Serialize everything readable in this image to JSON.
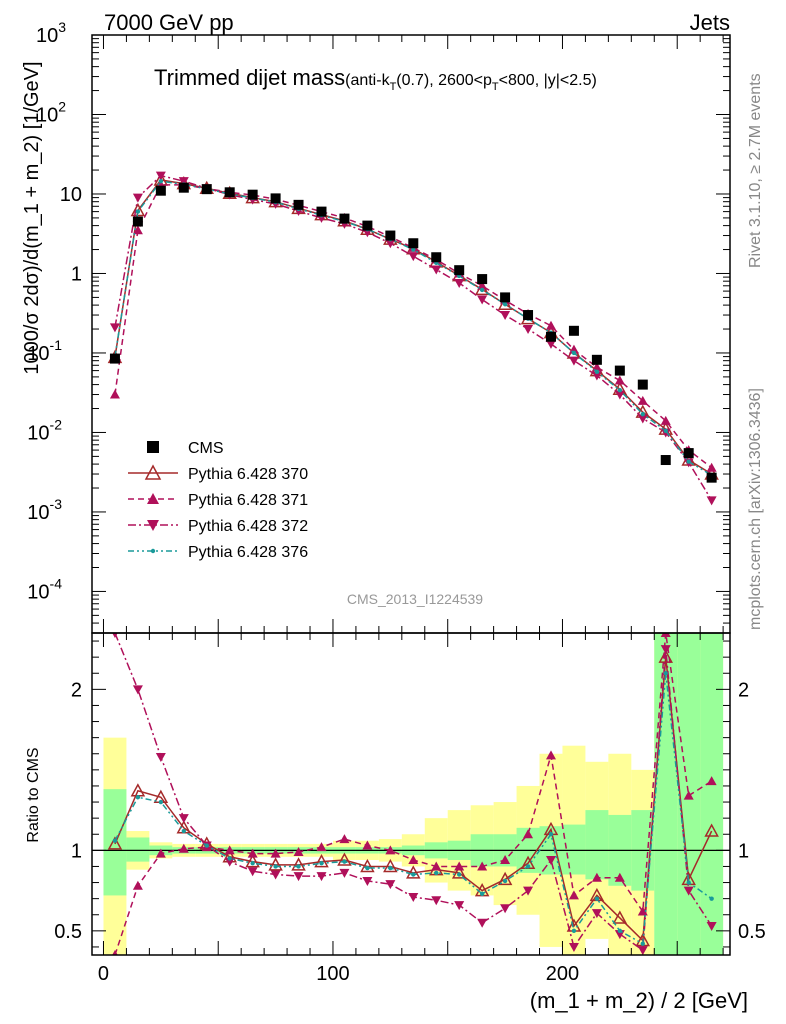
{
  "header": {
    "left": "7000 GeV pp",
    "right": "Jets"
  },
  "title": {
    "main": "Trimmed dijet mass",
    "sub_prefix": "(anti-k",
    "sub_kt_sub": "T",
    "sub_mid": "(0.7), 2600<p",
    "sub_pt_sub": "T",
    "sub_suffix": "<800, |y|<2.5)"
  },
  "side_labels": {
    "rivet": "Rivet 3.1.10, ≥ 2.7M events",
    "mcplots": "mcplots.cern.ch [arXiv:1306.3436]"
  },
  "analysis_id": "CMS_2013_I1224539",
  "axes": {
    "main_ylabel": "1000/σ 2dσ)/d(m_1 + m_2) [1/GeV]",
    "ratio_ylabel": "Ratio to CMS",
    "xlabel": "(m_1 + m_2) / 2 [GeV]",
    "x_ticks": [
      "0",
      "100",
      "200"
    ],
    "main_y_ticks": [
      "10",
      "10",
      "10",
      "10",
      "1",
      "10",
      "10^2",
      "10^3"
    ],
    "main_y_exponents": [
      "-4",
      "-3",
      "-2",
      "-1",
      "",
      "",
      "2",
      "3"
    ],
    "ratio_y_ticks": [
      "0.5",
      "1",
      "2"
    ]
  },
  "legend": {
    "entries": [
      {
        "label": "CMS",
        "color": "#000000",
        "marker": "square"
      },
      {
        "label": "Pythia 6.428 370",
        "color": "#a52a2a",
        "marker": "open-triangle-up"
      },
      {
        "label": "Pythia 6.428 371",
        "color": "#b0105a",
        "marker": "triangle-up"
      },
      {
        "label": "Pythia 6.428 372",
        "color": "#b0105a",
        "marker": "triangle-down"
      },
      {
        "label": "Pythia 6.428 376",
        "color": "#1a9a9a",
        "marker": "dot"
      }
    ]
  },
  "chart_data": {
    "type": "scatter",
    "xlim": [
      -5,
      273
    ],
    "ylim_main": [
      3e-05,
      1000
    ],
    "ylim_ratio": [
      0.35,
      2.35
    ],
    "main_y_scale": "log",
    "grid": false,
    "legend_position": "bottom-left",
    "x": [
      5,
      15,
      25,
      35,
      45,
      55,
      65,
      75,
      85,
      95,
      105,
      115,
      125,
      135,
      145,
      155,
      165,
      175,
      185,
      195,
      205,
      215,
      225,
      235,
      245,
      255,
      265
    ],
    "cms": [
      0.085,
      4.5,
      11.0,
      12.0,
      11.5,
      10.5,
      9.8,
      8.8,
      7.3,
      6.0,
      4.9,
      4.0,
      3.0,
      2.4,
      1.6,
      1.1,
      0.85,
      0.5,
      0.3,
      0.16,
      0.19,
      0.082,
      0.06,
      0.04,
      0.0045,
      0.0055,
      0.0027
    ],
    "ratio_x": [
      5,
      15,
      25,
      35,
      45,
      55,
      65,
      75,
      85,
      95,
      105,
      115,
      125,
      135,
      145,
      155,
      165,
      175,
      185,
      195,
      205,
      215,
      225,
      235,
      245,
      255,
      265
    ],
    "series": [
      {
        "name": "Pythia 6.428 370",
        "style": "solid",
        "marker": "open-triangle-up",
        "color": "#a52a2a",
        "values": [
          0.088,
          6.2,
          15.0,
          13.5,
          11.8,
          10.2,
          9.0,
          8.0,
          6.6,
          5.5,
          4.6,
          3.6,
          2.7,
          2.05,
          1.4,
          0.94,
          0.63,
          0.41,
          0.27,
          0.18,
          0.1,
          0.06,
          0.035,
          0.018,
          0.011,
          0.0045,
          0.003
        ],
        "ratio": [
          1.04,
          1.37,
          1.33,
          1.14,
          1.04,
          0.96,
          0.93,
          0.91,
          0.91,
          0.93,
          0.94,
          0.9,
          0.9,
          0.86,
          0.88,
          0.86,
          0.75,
          0.82,
          0.92,
          1.13,
          0.53,
          0.72,
          0.58,
          0.44,
          2.2,
          0.82,
          1.12
        ]
      },
      {
        "name": "Pythia 6.428 371",
        "style": "dashed",
        "marker": "triangle-up",
        "color": "#b0105a",
        "values": [
          0.03,
          3.5,
          13.0,
          13.0,
          11.7,
          10.5,
          9.7,
          8.6,
          7.2,
          6.0,
          5.0,
          3.9,
          2.9,
          2.1,
          1.5,
          1.0,
          0.7,
          0.46,
          0.31,
          0.22,
          0.11,
          0.066,
          0.045,
          0.025,
          0.014,
          0.006,
          0.0036
        ],
        "ratio": [
          0.35,
          0.78,
          0.98,
          1.01,
          1.02,
          1.0,
          0.98,
          0.98,
          0.99,
          1.02,
          1.07,
          1.03,
          1.0,
          0.94,
          0.9,
          0.9,
          0.9,
          0.94,
          1.1,
          1.59,
          0.72,
          0.83,
          0.83,
          0.62,
          2.35,
          1.34,
          1.43
        ]
      },
      {
        "name": "Pythia 6.428 372",
        "style": "dashdot",
        "marker": "triangle-down",
        "color": "#b0105a",
        "values": [
          0.21,
          9.0,
          17.0,
          14.5,
          11.8,
          9.8,
          8.5,
          7.5,
          6.1,
          5.0,
          4.2,
          3.3,
          2.4,
          1.65,
          1.12,
          0.76,
          0.47,
          0.3,
          0.2,
          0.13,
          0.08,
          0.052,
          0.03,
          0.015,
          0.01,
          0.0042,
          0.0014
        ],
        "ratio": [
          2.35,
          2.0,
          1.58,
          1.2,
          1.03,
          0.93,
          0.87,
          0.85,
          0.84,
          0.84,
          0.86,
          0.81,
          0.79,
          0.71,
          0.69,
          0.66,
          0.55,
          0.64,
          0.75,
          0.94,
          0.4,
          0.61,
          0.48,
          0.38,
          2.25,
          0.75,
          0.53
        ]
      },
      {
        "name": "Pythia 6.428 376",
        "style": "dashdotdot",
        "marker": "dot",
        "color": "#1a9a9a",
        "values": [
          0.09,
          6.0,
          14.5,
          13.2,
          11.6,
          10.0,
          8.9,
          7.9,
          6.5,
          5.4,
          4.5,
          3.6,
          2.7,
          2.0,
          1.36,
          0.93,
          0.62,
          0.41,
          0.27,
          0.18,
          0.1,
          0.058,
          0.034,
          0.017,
          0.0105,
          0.0043,
          0.0029
        ],
        "ratio": [
          1.06,
          1.33,
          1.3,
          1.12,
          1.03,
          0.95,
          0.92,
          0.9,
          0.9,
          0.92,
          0.93,
          0.89,
          0.89,
          0.85,
          0.86,
          0.85,
          0.73,
          0.81,
          0.9,
          1.1,
          0.5,
          0.7,
          0.5,
          0.42,
          2.1,
          0.8,
          0.7
        ]
      }
    ],
    "bands": {
      "edges": [
        0,
        10,
        20,
        30,
        40,
        50,
        60,
        70,
        80,
        90,
        100,
        110,
        120,
        130,
        140,
        150,
        160,
        170,
        180,
        190,
        200,
        210,
        220,
        230,
        240,
        250,
        260,
        270
      ],
      "green_lo": [
        0.72,
        0.93,
        0.97,
        0.98,
        0.98,
        0.98,
        0.98,
        0.98,
        0.98,
        0.98,
        0.98,
        0.98,
        0.98,
        0.97,
        0.95,
        0.94,
        0.9,
        0.9,
        0.86,
        0.85,
        0.85,
        0.82,
        0.78,
        0.75,
        0.35,
        0.35,
        0.35
      ],
      "green_hi": [
        1.38,
        1.08,
        1.03,
        1.02,
        1.02,
        1.02,
        1.02,
        1.02,
        1.02,
        1.02,
        1.02,
        1.02,
        1.02,
        1.03,
        1.05,
        1.06,
        1.1,
        1.1,
        1.14,
        1.15,
        1.16,
        1.25,
        1.22,
        1.25,
        2.35,
        2.35,
        2.35
      ],
      "yellow_lo": [
        0.35,
        0.88,
        0.95,
        0.96,
        0.96,
        0.96,
        0.96,
        0.96,
        0.96,
        0.96,
        0.94,
        0.94,
        0.93,
        0.9,
        0.8,
        0.75,
        0.72,
        0.66,
        0.6,
        0.4,
        0.35,
        0.45,
        0.35,
        0.35,
        0.35,
        0.35,
        0.35
      ],
      "yellow_hi": [
        1.7,
        1.12,
        1.05,
        1.04,
        1.04,
        1.04,
        1.04,
        1.04,
        1.04,
        1.04,
        1.06,
        1.06,
        1.07,
        1.1,
        1.2,
        1.25,
        1.28,
        1.3,
        1.4,
        1.6,
        1.65,
        1.55,
        1.6,
        1.5,
        2.35,
        2.35,
        2.35
      ]
    }
  }
}
